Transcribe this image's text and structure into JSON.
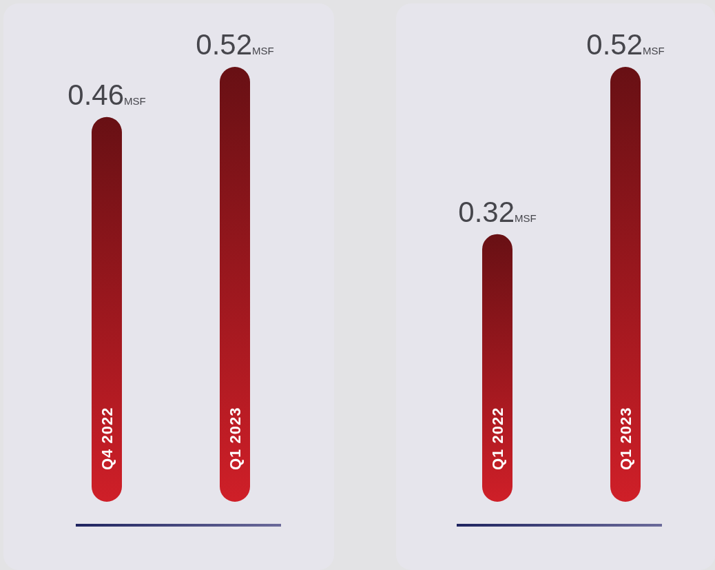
{
  "chart_data": [
    {
      "type": "bar",
      "categories": [
        "Q4 2022",
        "Q1 2023"
      ],
      "values": [
        0.46,
        0.52
      ],
      "value_labels": [
        "0.46MSF",
        "0.52MSF"
      ],
      "color": "#cf1f28"
    },
    {
      "type": "bar",
      "categories": [
        "Q1 2022",
        "Q1 2023"
      ],
      "values": [
        0.32,
        0.52
      ],
      "value_labels": [
        "0.32MSF",
        "0.52MSF"
      ],
      "color": "#cf1f28"
    }
  ]
}
